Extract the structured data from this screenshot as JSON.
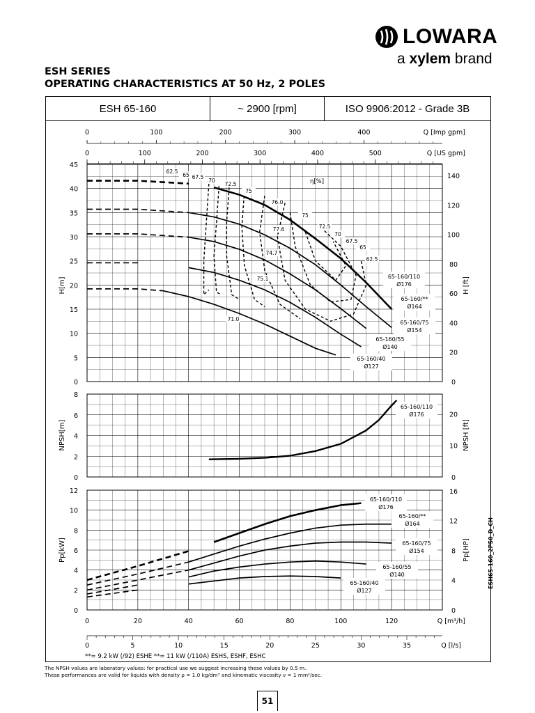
{
  "brand": {
    "logo_text": "LOWARA",
    "tagline_prefix": "a ",
    "tagline_brand": "xylem",
    "tagline_suffix": " brand"
  },
  "title": {
    "line1": "ESH SERIES",
    "line2": "OPERATING CHARACTERISTICS AT 50 Hz, 2 POLES"
  },
  "header": {
    "model": "ESH 65-160",
    "speed": "~ 2900 [rpm]",
    "standard": "ISO 9906:2012 - Grade 3B"
  },
  "footnotes": {
    "power_note": "**= 9.2 kW (/92) ESHE  **= 11 kW (/110A) ESHS, ESHF, ESHC",
    "line1": "The NPSH values are laboratory values: for practical use we suggest increasing these values by 0.5 m.",
    "line2": "These performances are valid for liquids with density ρ = 1.0 kg/dm³ and kinematic viscosity ν = 1 mm²/sec."
  },
  "page_number": "51",
  "doc_code": "ESH65-160_2P50_D_CH",
  "chart_data": {
    "type": "line",
    "q_axes": {
      "imp_gpm": {
        "label": "Q [Imp gpm]",
        "ticks": [
          0,
          100,
          200,
          300,
          400
        ]
      },
      "us_gpm": {
        "label": "Q [US gpm]",
        "ticks": [
          0,
          100,
          200,
          300,
          400,
          500
        ]
      },
      "m3h": {
        "label": "Q [m³/h]",
        "ticks": [
          0,
          20,
          40,
          60,
          80,
          100,
          120
        ],
        "range": [
          0,
          140
        ]
      },
      "ls": {
        "label": "Q [l/s]",
        "ticks": [
          0,
          5,
          10,
          15,
          20,
          25,
          30,
          35
        ]
      }
    },
    "head_chart": {
      "ylabel_left": "H[m]",
      "ylabel_right": "H [ft]",
      "ylim": [
        0,
        45
      ],
      "yticks": [
        0,
        5,
        10,
        15,
        20,
        25,
        30,
        35,
        40,
        45
      ],
      "ft_ticks": [
        0,
        20,
        40,
        60,
        80,
        100,
        120,
        140
      ],
      "efficiency_label": "η[%]",
      "series": [
        {
          "name": "65-160/110",
          "diameter": "Ø176",
          "label1": "65-160/110",
          "label2": "Ø176",
          "points": [
            [
              0,
              41.6
            ],
            [
              20,
              41.6
            ],
            [
              40,
              41.0
            ],
            [
              50,
              40.2
            ],
            [
              60,
              38.7
            ],
            [
              70,
              36.6
            ],
            [
              80,
              33.5
            ],
            [
              90,
              29.6
            ],
            [
              100,
              25.5
            ],
            [
              110,
              20.5
            ],
            [
              120,
              15.0
            ]
          ]
        },
        {
          "name": "65-160/**",
          "diameter": "Ø164",
          "label1": "65-160/**",
          "label2": "Ø164",
          "points": [
            [
              0,
              35.7
            ],
            [
              20,
              35.7
            ],
            [
              40,
              35.0
            ],
            [
              50,
              34.1
            ],
            [
              60,
              32.6
            ],
            [
              70,
              30.4
            ],
            [
              80,
              27.6
            ],
            [
              90,
              24.2
            ],
            [
              100,
              20.0
            ],
            [
              110,
              15.5
            ],
            [
              120,
              11.2
            ]
          ]
        },
        {
          "name": "65-160/75",
          "diameter": "Ø154",
          "label1": "65-160/75",
          "label2": "Ø154",
          "points": [
            [
              0,
              30.6
            ],
            [
              20,
              30.6
            ],
            [
              40,
              29.9
            ],
            [
              50,
              29.0
            ],
            [
              60,
              27.4
            ],
            [
              70,
              25.2
            ],
            [
              80,
              22.3
            ],
            [
              90,
              19.0
            ],
            [
              100,
              15.1
            ],
            [
              110,
              11.0
            ]
          ]
        },
        {
          "name": "65-160/55",
          "diameter": "Ø140",
          "label1": "65-160/55",
          "label2": "Ø140",
          "points": [
            [
              0,
              24.6
            ],
            [
              20,
              24.6
            ],
            [
              40,
              23.6
            ],
            [
              50,
              22.6
            ],
            [
              60,
              21.0
            ],
            [
              70,
              19.0
            ],
            [
              80,
              16.4
            ],
            [
              90,
              13.3
            ],
            [
              100,
              9.8
            ],
            [
              108,
              7.2
            ]
          ]
        },
        {
          "name": "65-160/40",
          "diameter": "Ø127",
          "label1": "65-160/40",
          "label2": "Ø127",
          "points": [
            [
              0,
              19.2
            ],
            [
              20,
              19.2
            ],
            [
              30,
              18.8
            ],
            [
              40,
              17.6
            ],
            [
              50,
              16.0
            ],
            [
              60,
              14.1
            ],
            [
              70,
              11.9
            ],
            [
              80,
              9.4
            ],
            [
              90,
              6.9
            ],
            [
              98,
              5.5
            ]
          ]
        }
      ],
      "efficiency_labels": [
        "62.5",
        "65",
        "67.5",
        "70",
        "72.5",
        "75",
        "76.0",
        "77.6",
        "74.7",
        "75.1",
        "71.0"
      ]
    },
    "npsh_chart": {
      "ylabel_left": "NPSH[m]",
      "ylabel_right": "NPSH [ft]",
      "ylim": [
        0,
        8
      ],
      "yticks": [
        0,
        2,
        4,
        6,
        8
      ],
      "ft_ticks": [
        0,
        10,
        20
      ],
      "series": [
        {
          "name": "65-160/110",
          "label1": "65-160/110",
          "label2": "Ø176",
          "points": [
            [
              48,
              1.7
            ],
            [
              60,
              1.75
            ],
            [
              70,
              1.85
            ],
            [
              80,
              2.05
            ],
            [
              90,
              2.5
            ],
            [
              100,
              3.2
            ],
            [
              110,
              4.5
            ],
            [
              115,
              5.5
            ],
            [
              120,
              6.9
            ],
            [
              122,
              7.4
            ]
          ]
        }
      ]
    },
    "power_chart": {
      "ylabel_left": "Pp[kW]",
      "ylabel_right": "Pp[HP]",
      "ylim": [
        0,
        12
      ],
      "yticks": [
        0,
        2,
        4,
        6,
        8,
        10,
        12
      ],
      "hp_ticks": [
        0,
        4,
        8,
        12,
        16
      ],
      "series": [
        {
          "name": "65-160/110",
          "label1": "65-160/110",
          "label2": "Ø176",
          "points": [
            [
              0,
              3.0
            ],
            [
              20,
              4.4
            ],
            [
              40,
              5.9
            ],
            [
              50,
              6.8
            ],
            [
              60,
              7.7
            ],
            [
              70,
              8.6
            ],
            [
              80,
              9.4
            ],
            [
              90,
              10.0
            ],
            [
              100,
              10.5
            ],
            [
              108,
              10.7
            ]
          ]
        },
        {
          "name": "65-160/**",
          "label1": "65-160/**",
          "label2": "Ø164",
          "points": [
            [
              0,
              2.5
            ],
            [
              20,
              3.6
            ],
            [
              40,
              4.8
            ],
            [
              50,
              5.6
            ],
            [
              60,
              6.4
            ],
            [
              70,
              7.1
            ],
            [
              80,
              7.7
            ],
            [
              90,
              8.2
            ],
            [
              100,
              8.5
            ],
            [
              110,
              8.6
            ],
            [
              120,
              8.6
            ]
          ]
        },
        {
          "name": "65-160/75",
          "label1": "65-160/75",
          "label2": "Ø154",
          "points": [
            [
              0,
              2.0
            ],
            [
              20,
              3.0
            ],
            [
              40,
              4.0
            ],
            [
              50,
              4.7
            ],
            [
              60,
              5.4
            ],
            [
              70,
              6.0
            ],
            [
              80,
              6.4
            ],
            [
              90,
              6.7
            ],
            [
              100,
              6.8
            ],
            [
              110,
              6.8
            ],
            [
              120,
              6.7
            ]
          ]
        },
        {
          "name": "65-160/55",
          "label1": "65-160/55",
          "label2": "Ø140",
          "points": [
            [
              0,
              1.6
            ],
            [
              20,
              2.5
            ],
            [
              40,
              3.3
            ],
            [
              50,
              3.9
            ],
            [
              60,
              4.3
            ],
            [
              70,
              4.6
            ],
            [
              80,
              4.8
            ],
            [
              90,
              4.9
            ],
            [
              100,
              4.8
            ],
            [
              110,
              4.6
            ]
          ]
        },
        {
          "name": "65-160/40",
          "label1": "65-160/40",
          "label2": "Ø127",
          "points": [
            [
              0,
              1.3
            ],
            [
              20,
              2.0
            ],
            [
              40,
              2.6
            ],
            [
              50,
              2.9
            ],
            [
              60,
              3.2
            ],
            [
              70,
              3.35
            ],
            [
              80,
              3.4
            ],
            [
              90,
              3.35
            ],
            [
              100,
              3.2
            ]
          ]
        }
      ]
    }
  }
}
